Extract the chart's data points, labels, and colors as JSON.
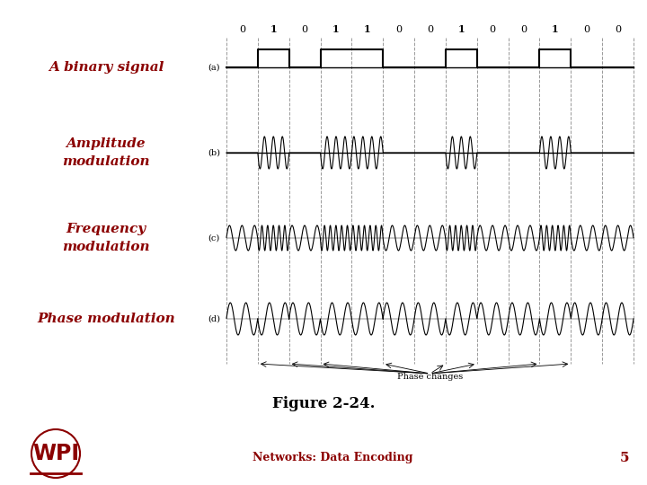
{
  "background_color": "#ffffff",
  "title_color": "#8b0000",
  "label_color": "#8b0000",
  "signal_color": "#000000",
  "dashed_line_color": "#888888",
  "bits": [
    0,
    1,
    0,
    1,
    1,
    0,
    0,
    1,
    0,
    0,
    1,
    0,
    0
  ],
  "figure_caption": "Figure 2-24.",
  "footer_text": "Networks: Data Encoding",
  "footer_number": "5",
  "labels_left": [
    "A binary signal",
    "Amplitude\nmodulation",
    "Frequency\nmodulation",
    "Phase modulation"
  ],
  "sublabels": [
    "(a)",
    "(b)",
    "(c)",
    "(d)"
  ],
  "wpi_color": "#8b0000"
}
